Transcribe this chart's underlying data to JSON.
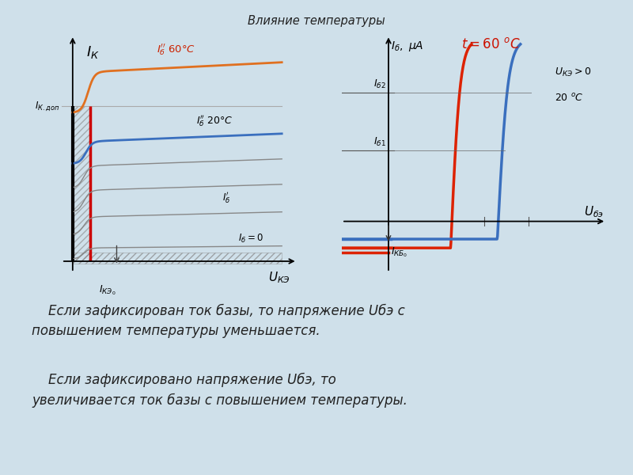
{
  "title": "Влияние температуры",
  "bg_color": "#cfe0ea",
  "text1": "    Если зафиксирован ток базы, то напряжение Uбэ с\nповышением температуры уменьшается.",
  "text2": "    Если зафиксировано напряжение Uбэ, то\nувеличивается ток базы с повышением температуры.",
  "left_plot": {
    "color_60": "#e07020",
    "color_20": "#3a6fbe",
    "color_gray": "#888888",
    "color_red": "#cc0000",
    "color_black": "#111111"
  },
  "right_plot": {
    "color_60": "#dd2200",
    "color_20": "#3a6fbe",
    "color_black": "#111111"
  }
}
